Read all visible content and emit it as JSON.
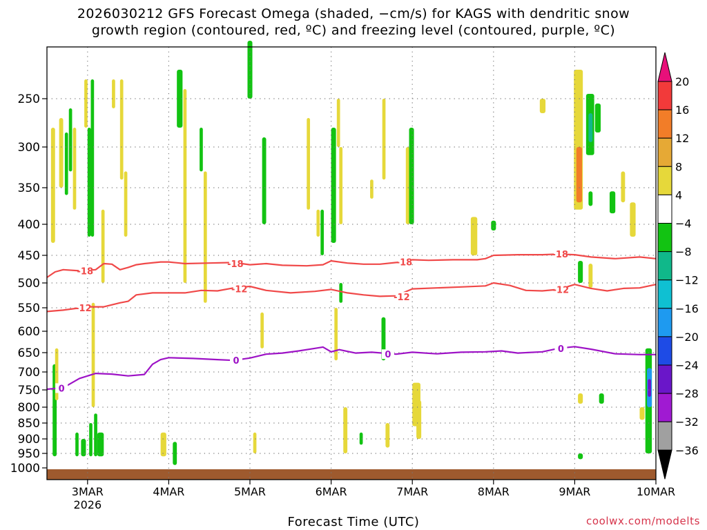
{
  "title_line1": "2026030212 GFS Forecast Omega (shaded, −cm/s) for KAGS with dendritic snow",
  "title_line2": "growth region (contoured, red, ºC) and freezing level (contoured, purple, ºC)",
  "xlabel": "Forecast Time (UTC)",
  "credit": "coolwx.com/modelts",
  "chart_data": {
    "type": "heatmap",
    "title": "2026030212 GFS Forecast Omega (shaded, −cm/s) for KAGS with dendritic snow growth region (contoured, red, ºC) and freezing level (contoured, purple, ºC)",
    "xlabel": "Forecast Time (UTC)",
    "ylabel": "",
    "x_range": [
      2.5,
      10.0
    ],
    "x_ticks": [
      {
        "x": 3,
        "label": "3MAR",
        "sub": "2026"
      },
      {
        "x": 4,
        "label": "4MAR"
      },
      {
        "x": 5,
        "label": "5MAR"
      },
      {
        "x": 6,
        "label": "6MAR"
      },
      {
        "x": 7,
        "label": "7MAR"
      },
      {
        "x": 8,
        "label": "8MAR"
      },
      {
        "x": 9,
        "label": "9MAR"
      },
      {
        "x": 10,
        "label": "10MAR"
      }
    ],
    "y_ticks": [
      250,
      300,
      350,
      400,
      450,
      500,
      550,
      600,
      650,
      700,
      750,
      800,
      850,
      900,
      950,
      1000
    ],
    "y_axis": "pressure (hPa), decreasing upward",
    "grid": true,
    "colorbar": {
      "levels": [
        "20",
        "16",
        "12",
        "8",
        "4",
        "−4",
        "−8",
        "−12",
        "−16",
        "−20",
        "−24",
        "−28",
        "−32",
        "−36"
      ],
      "colors": [
        "#e8107a",
        "#f23a3a",
        "#f27d28",
        "#e6a935",
        "#e6d83a",
        "#ffffff",
        "#12c312",
        "#10b88a",
        "#0fc0d2",
        "#1e9af0",
        "#1e4be6",
        "#6a16c9",
        "#a01ad2",
        "#a0a0a0",
        "#000000"
      ]
    },
    "contours": [
      {
        "name": "-18",
        "color": "#f04848",
        "points": [
          [
            2.5,
            490
          ],
          [
            2.6,
            480
          ],
          [
            2.7,
            476
          ],
          [
            2.9,
            478
          ],
          [
            3.1,
            476
          ],
          [
            3.2,
            465
          ],
          [
            3.3,
            466
          ],
          [
            3.4,
            476
          ],
          [
            3.5,
            472
          ],
          [
            3.6,
            467
          ],
          [
            3.7,
            465
          ],
          [
            3.9,
            462
          ],
          [
            4.0,
            462
          ],
          [
            4.2,
            465
          ],
          [
            4.5,
            464
          ],
          [
            4.8,
            463
          ],
          [
            5.0,
            467
          ],
          [
            5.2,
            465
          ],
          [
            5.4,
            468
          ],
          [
            5.7,
            469
          ],
          [
            5.9,
            467
          ],
          [
            6.0,
            460
          ],
          [
            6.2,
            464
          ],
          [
            6.4,
            466
          ],
          [
            6.6,
            466
          ],
          [
            6.8,
            463
          ],
          [
            7.0,
            458
          ],
          [
            7.2,
            459
          ],
          [
            7.5,
            458
          ],
          [
            7.8,
            458
          ],
          [
            7.9,
            456
          ],
          [
            8.0,
            450
          ],
          [
            8.3,
            449
          ],
          [
            8.6,
            449
          ],
          [
            8.8,
            448
          ],
          [
            9.0,
            449
          ],
          [
            9.2,
            453
          ],
          [
            9.5,
            456
          ],
          [
            9.8,
            453
          ],
          [
            10.0,
            456
          ]
        ],
        "labels": [
          [
            2.97,
            478
          ],
          [
            4.82,
            465
          ],
          [
            6.9,
            462
          ],
          [
            8.82,
            448
          ]
        ]
      },
      {
        "name": "-12",
        "color": "#f04848",
        "points": [
          [
            2.5,
            558
          ],
          [
            2.7,
            555
          ],
          [
            3.0,
            548
          ],
          [
            3.2,
            548
          ],
          [
            3.4,
            540
          ],
          [
            3.5,
            537
          ],
          [
            3.6,
            524
          ],
          [
            3.8,
            520
          ],
          [
            4.0,
            520
          ],
          [
            4.2,
            520
          ],
          [
            4.4,
            515
          ],
          [
            4.6,
            516
          ],
          [
            4.8,
            510
          ],
          [
            5.0,
            507
          ],
          [
            5.2,
            515
          ],
          [
            5.5,
            520
          ],
          [
            5.8,
            517
          ],
          [
            6.0,
            513
          ],
          [
            6.2,
            520
          ],
          [
            6.4,
            524
          ],
          [
            6.6,
            527
          ],
          [
            6.8,
            526
          ],
          [
            7.0,
            512
          ],
          [
            7.3,
            510
          ],
          [
            7.6,
            508
          ],
          [
            7.9,
            506
          ],
          [
            8.0,
            500
          ],
          [
            8.2,
            505
          ],
          [
            8.4,
            515
          ],
          [
            8.6,
            516
          ],
          [
            8.8,
            513
          ],
          [
            9.0,
            503
          ],
          [
            9.2,
            511
          ],
          [
            9.4,
            516
          ],
          [
            9.6,
            511
          ],
          [
            9.8,
            510
          ],
          [
            10.0,
            503
          ]
        ],
        "labels": [
          [
            2.95,
            550
          ],
          [
            4.87,
            512
          ],
          [
            6.87,
            528
          ],
          [
            8.83,
            513
          ]
        ]
      },
      {
        "name": "0",
        "color": "#9d12c6",
        "points": [
          [
            2.5,
            748
          ],
          [
            2.7,
            744
          ],
          [
            2.9,
            718
          ],
          [
            3.1,
            704
          ],
          [
            3.3,
            706
          ],
          [
            3.5,
            711
          ],
          [
            3.7,
            707
          ],
          [
            3.8,
            680
          ],
          [
            3.9,
            668
          ],
          [
            4.0,
            663
          ],
          [
            4.3,
            665
          ],
          [
            4.6,
            668
          ],
          [
            4.8,
            670
          ],
          [
            5.0,
            664
          ],
          [
            5.2,
            654
          ],
          [
            5.4,
            651
          ],
          [
            5.6,
            646
          ],
          [
            5.8,
            640
          ],
          [
            5.9,
            637
          ],
          [
            6.0,
            648
          ],
          [
            6.1,
            643
          ],
          [
            6.3,
            651
          ],
          [
            6.5,
            649
          ],
          [
            6.8,
            654
          ],
          [
            7.0,
            649
          ],
          [
            7.3,
            653
          ],
          [
            7.6,
            649
          ],
          [
            7.9,
            648
          ],
          [
            8.1,
            646
          ],
          [
            8.3,
            651
          ],
          [
            8.6,
            648
          ],
          [
            8.8,
            640
          ],
          [
            9.0,
            636
          ],
          [
            9.2,
            642
          ],
          [
            9.5,
            653
          ],
          [
            9.8,
            655
          ],
          [
            10.0,
            655
          ]
        ],
        "labels": [
          [
            2.68,
            745
          ],
          [
            4.83,
            670
          ],
          [
            6.7,
            654
          ],
          [
            8.83,
            640
          ]
        ]
      }
    ],
    "shaded": [
      {
        "v": 6,
        "x": [
          2.55,
          2.6
        ],
        "y": [
          280,
          430
        ]
      },
      {
        "v": -6,
        "x": [
          2.57,
          2.62
        ],
        "y": [
          680,
          960
        ]
      },
      {
        "v": 6,
        "x": [
          2.6,
          2.64
        ],
        "y": [
          640,
          780
        ]
      },
      {
        "v": 6,
        "x": [
          2.65,
          2.7
        ],
        "y": [
          270,
          350
        ]
      },
      {
        "v": -6,
        "x": [
          2.72,
          2.76
        ],
        "y": [
          285,
          360
        ]
      },
      {
        "v": -6,
        "x": [
          2.77,
          2.81
        ],
        "y": [
          260,
          330
        ]
      },
      {
        "v": 6,
        "x": [
          2.82,
          2.86
        ],
        "y": [
          280,
          380
        ]
      },
      {
        "v": -6,
        "x": [
          2.85,
          2.89
        ],
        "y": [
          880,
          960
        ]
      },
      {
        "v": -6,
        "x": [
          2.92,
          2.98
        ],
        "y": [
          900,
          960
        ]
      },
      {
        "v": 6,
        "x": [
          2.96,
          3.0
        ],
        "y": [
          230,
          280
        ]
      },
      {
        "v": -6,
        "x": [
          3.0,
          3.04
        ],
        "y": [
          280,
          420
        ]
      },
      {
        "v": -6,
        "x": [
          3.02,
          3.06
        ],
        "y": [
          850,
          960
        ]
      },
      {
        "v": -6,
        "x": [
          3.04,
          3.08
        ],
        "y": [
          230,
          420
        ]
      },
      {
        "v": 6,
        "x": [
          3.05,
          3.09
        ],
        "y": [
          540,
          800
        ]
      },
      {
        "v": -6,
        "x": [
          3.08,
          3.12
        ],
        "y": [
          820,
          960
        ]
      },
      {
        "v": -6,
        "x": [
          3.12,
          3.2
        ],
        "y": [
          880,
          960
        ]
      },
      {
        "v": 6,
        "x": [
          3.17,
          3.21
        ],
        "y": [
          380,
          500
        ]
      },
      {
        "v": 6,
        "x": [
          3.3,
          3.34
        ],
        "y": [
          230,
          260
        ]
      },
      {
        "v": 6,
        "x": [
          3.4,
          3.44
        ],
        "y": [
          230,
          340
        ]
      },
      {
        "v": 6,
        "x": [
          3.45,
          3.49
        ],
        "y": [
          330,
          420
        ]
      },
      {
        "v": 6,
        "x": [
          3.9,
          3.97
        ],
        "y": [
          880,
          960
        ]
      },
      {
        "v": -6,
        "x": [
          4.05,
          4.1
        ],
        "y": [
          910,
          990
        ]
      },
      {
        "v": -6,
        "x": [
          4.1,
          4.17
        ],
        "y": [
          220,
          280
        ]
      },
      {
        "v": 6,
        "x": [
          4.18,
          4.22
        ],
        "y": [
          240,
          500
        ]
      },
      {
        "v": -6,
        "x": [
          4.38,
          4.42
        ],
        "y": [
          280,
          330
        ]
      },
      {
        "v": 6,
        "x": [
          4.43,
          4.47
        ],
        "y": [
          330,
          540
        ]
      },
      {
        "v": -6,
        "x": [
          4.97,
          5.03
        ],
        "y": [
          190,
          250
        ]
      },
      {
        "v": 6,
        "x": [
          5.04,
          5.08
        ],
        "y": [
          880,
          950
        ]
      },
      {
        "v": 6,
        "x": [
          5.13,
          5.17
        ],
        "y": [
          560,
          640
        ]
      },
      {
        "v": -6,
        "x": [
          5.15,
          5.2
        ],
        "y": [
          290,
          400
        ]
      },
      {
        "v": 6,
        "x": [
          5.7,
          5.74
        ],
        "y": [
          270,
          380
        ]
      },
      {
        "v": 6,
        "x": [
          5.82,
          5.86
        ],
        "y": [
          380,
          420
        ]
      },
      {
        "v": -6,
        "x": [
          5.87,
          5.91
        ],
        "y": [
          380,
          450
        ]
      },
      {
        "v": -6,
        "x": [
          6.0,
          6.06
        ],
        "y": [
          280,
          430
        ]
      },
      {
        "v": 6,
        "x": [
          6.04,
          6.08
        ],
        "y": [
          550,
          670
        ]
      },
      {
        "v": 6,
        "x": [
          6.07,
          6.11
        ],
        "y": [
          250,
          300
        ]
      },
      {
        "v": 6,
        "x": [
          6.1,
          6.14
        ],
        "y": [
          300,
          400
        ]
      },
      {
        "v": -6,
        "x": [
          6.1,
          6.14
        ],
        "y": [
          500,
          540
        ]
      },
      {
        "v": 6,
        "x": [
          6.15,
          6.2
        ],
        "y": [
          800,
          950
        ]
      },
      {
        "v": -6,
        "x": [
          6.35,
          6.39
        ],
        "y": [
          880,
          920
        ]
      },
      {
        "v": 6,
        "x": [
          6.48,
          6.52
        ],
        "y": [
          340,
          365
        ]
      },
      {
        "v": 6,
        "x": [
          6.63,
          6.67
        ],
        "y": [
          250,
          340
        ]
      },
      {
        "v": -6,
        "x": [
          6.62,
          6.67
        ],
        "y": [
          570,
          670
        ]
      },
      {
        "v": 6,
        "x": [
          6.67,
          6.72
        ],
        "y": [
          850,
          930
        ]
      },
      {
        "v": 6,
        "x": [
          6.92,
          6.97
        ],
        "y": [
          300,
          400
        ]
      },
      {
        "v": -6,
        "x": [
          6.96,
          7.02
        ],
        "y": [
          280,
          400
        ]
      },
      {
        "v": 6,
        "x": [
          7.0,
          7.1
        ],
        "y": [
          730,
          860
        ]
      },
      {
        "v": 6,
        "x": [
          7.05,
          7.11
        ],
        "y": [
          780,
          900
        ]
      },
      {
        "v": 6,
        "x": [
          7.72,
          7.8
        ],
        "y": [
          390,
          450
        ]
      },
      {
        "v": -6,
        "x": [
          7.97,
          8.03
        ],
        "y": [
          395,
          410
        ]
      },
      {
        "v": 6,
        "x": [
          8.57,
          8.64
        ],
        "y": [
          250,
          265
        ]
      },
      {
        "v": 6,
        "x": [
          8.99,
          9.1
        ],
        "y": [
          220,
          380
        ]
      },
      {
        "v": 14,
        "x": [
          9.02,
          9.09
        ],
        "y": [
          300,
          370
        ]
      },
      {
        "v": -6,
        "x": [
          9.04,
          9.1
        ],
        "y": [
          460,
          500
        ]
      },
      {
        "v": 6,
        "x": [
          9.04,
          9.1
        ],
        "y": [
          760,
          790
        ]
      },
      {
        "v": -6,
        "x": [
          9.04,
          9.1
        ],
        "y": [
          950,
          970
        ]
      },
      {
        "v": -6,
        "x": [
          9.14,
          9.24
        ],
        "y": [
          245,
          310
        ]
      },
      {
        "v": -10,
        "x": [
          9.17,
          9.22
        ],
        "y": [
          265,
          295
        ]
      },
      {
        "v": -6,
        "x": [
          9.25,
          9.32
        ],
        "y": [
          255,
          285
        ]
      },
      {
        "v": -6,
        "x": [
          9.17,
          9.22
        ],
        "y": [
          355,
          375
        ]
      },
      {
        "v": 6,
        "x": [
          9.17,
          9.22
        ],
        "y": [
          465,
          510
        ]
      },
      {
        "v": -6,
        "x": [
          9.3,
          9.36
        ],
        "y": [
          760,
          790
        ]
      },
      {
        "v": -6,
        "x": [
          9.43,
          9.5
        ],
        "y": [
          355,
          385
        ]
      },
      {
        "v": 6,
        "x": [
          9.57,
          9.62
        ],
        "y": [
          330,
          370
        ]
      },
      {
        "v": 6,
        "x": [
          9.68,
          9.75
        ],
        "y": [
          370,
          420
        ]
      },
      {
        "v": 6,
        "x": [
          9.8,
          9.86
        ],
        "y": [
          800,
          840
        ]
      },
      {
        "v": -6,
        "x": [
          9.87,
          9.95
        ],
        "y": [
          640,
          950
        ]
      },
      {
        "v": -18,
        "x": [
          9.89,
          9.95
        ],
        "y": [
          690,
          800
        ]
      },
      {
        "v": -26,
        "x": [
          9.9,
          9.94
        ],
        "y": [
          720,
          770
        ]
      }
    ]
  }
}
